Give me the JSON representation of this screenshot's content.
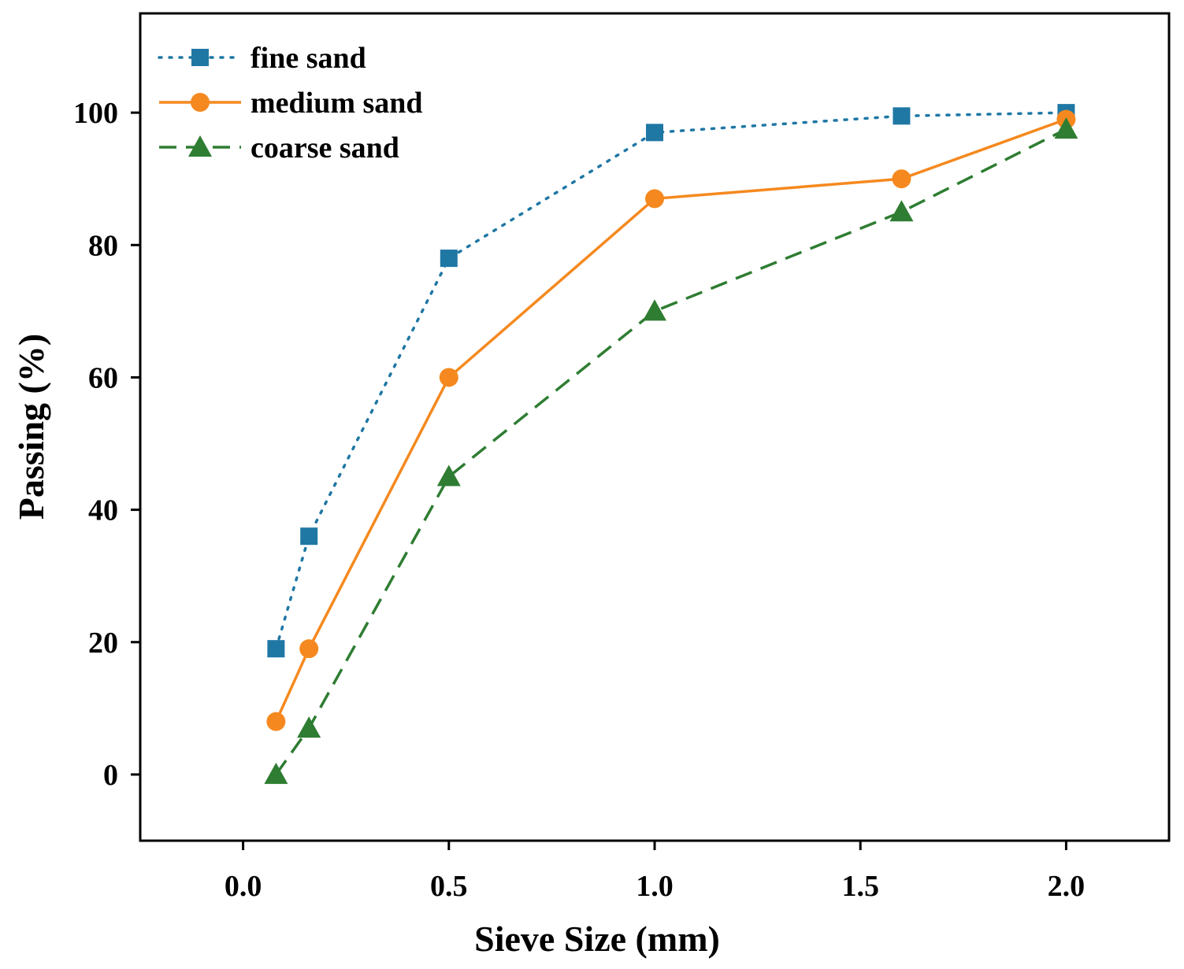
{
  "chart_data": {
    "type": "line",
    "title": "",
    "xlabel": "Sieve Size (mm)",
    "ylabel": "Passing (%)",
    "xlim": [
      -0.25,
      2.25
    ],
    "ylim": [
      -10,
      115
    ],
    "x_ticks": [
      0.0,
      0.5,
      1.0,
      1.5,
      2.0
    ],
    "x_tick_labels": [
      "0.0",
      "0.5",
      "1.0",
      "1.5",
      "2.0"
    ],
    "y_ticks": [
      0,
      20,
      40,
      60,
      80,
      100
    ],
    "y_tick_labels": [
      "0",
      "20",
      "40",
      "60",
      "80",
      "100"
    ],
    "grid": false,
    "legend_position": "top-left",
    "x": [
      0.08,
      0.16,
      0.5,
      1.0,
      1.6,
      2.0
    ],
    "series": [
      {
        "name": "fine sand",
        "values": [
          19,
          36,
          78,
          97,
          99.5,
          100
        ],
        "color": "#1f77a4",
        "marker": "square",
        "line_style": "dotted"
      },
      {
        "name": "medium sand",
        "values": [
          8,
          19,
          60,
          87,
          90,
          99
        ],
        "color": "#f5891f",
        "marker": "circle",
        "line_style": "solid"
      },
      {
        "name": "coarse sand",
        "values": [
          0,
          7,
          45,
          70,
          85,
          97.5
        ],
        "color": "#2e7d32",
        "marker": "triangle",
        "line_style": "dashed"
      }
    ]
  }
}
